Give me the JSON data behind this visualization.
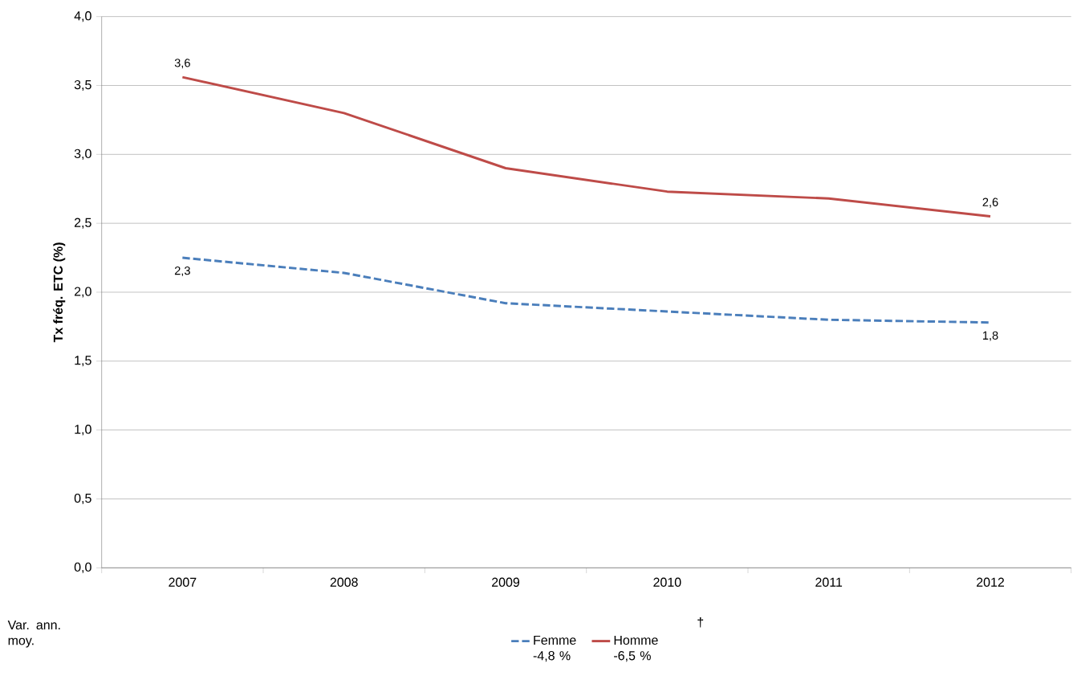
{
  "chart_data": {
    "type": "line",
    "ylabel": "Tx fréq. ETC (%)",
    "categories": [
      "2007",
      "2008",
      "2009",
      "2010",
      "2011",
      "2012"
    ],
    "series": [
      {
        "name": "Femme -4,8 %",
        "color": "#4a7ebb",
        "line_style": "dashed",
        "values": [
          2.25,
          2.14,
          1.92,
          1.86,
          1.8,
          1.78
        ],
        "value_labels": [
          "2,3",
          null,
          null,
          null,
          null,
          "1,8"
        ]
      },
      {
        "name": "Homme -6,5 %",
        "color": "#be4b48",
        "line_style": "solid",
        "values": [
          3.56,
          3.3,
          2.9,
          2.73,
          2.68,
          2.55
        ],
        "value_labels": [
          "3,6",
          null,
          null,
          null,
          null,
          "2,6"
        ]
      }
    ],
    "ylim": [
      0,
      4
    ],
    "yticks": [
      {
        "value": 0,
        "label": "0,0"
      },
      {
        "value": 0.5,
        "label": "0,5"
      },
      {
        "value": 1,
        "label": "1,0"
      },
      {
        "value": 1.5,
        "label": "1,5"
      },
      {
        "value": 2,
        "label": "2,0"
      },
      {
        "value": 2.5,
        "label": "2,5"
      },
      {
        "value": 3,
        "label": "3,0"
      },
      {
        "value": 3.5,
        "label": "3,5"
      },
      {
        "value": 4,
        "label": "4,0"
      }
    ],
    "grid": "y",
    "legend": "bottom",
    "marker": "none",
    "annotations": [
      "Var. ann. moy.",
      "†"
    ]
  }
}
